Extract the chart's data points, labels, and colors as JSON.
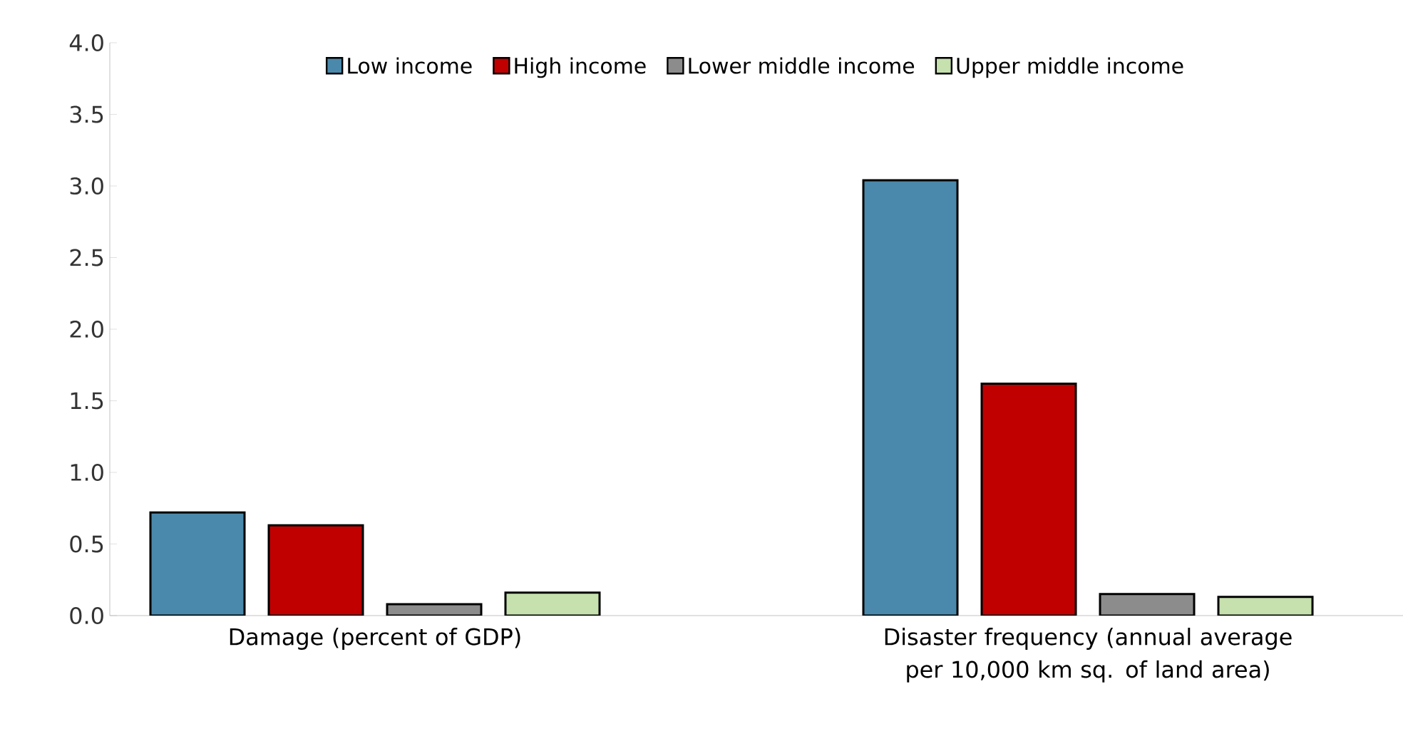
{
  "chart_data": {
    "type": "bar",
    "categories": [
      "Damage (percent of GDP)",
      "Disaster frequency (annual average per 10,000 km sq. of land area)"
    ],
    "series": [
      {
        "name": "Low income",
        "color": "#4a89ab",
        "values": [
          0.72,
          3.04
        ]
      },
      {
        "name": "High income",
        "color": "#c00000",
        "values": [
          0.63,
          1.62
        ]
      },
      {
        "name": "Lower middle income",
        "color": "#8c8c8c",
        "values": [
          0.08,
          0.15
        ]
      },
      {
        "name": "Upper middle income",
        "color": "#c6e0ae",
        "values": [
          0.16,
          0.13
        ]
      }
    ],
    "ylim": [
      0,
      4.0
    ],
    "yticks": [
      {
        "value": 0,
        "label": "0.0"
      },
      {
        "value": 0.5,
        "label": "0.5"
      },
      {
        "value": 1,
        "label": "1.0"
      },
      {
        "value": 1.5,
        "label": "1.5"
      },
      {
        "value": 2,
        "label": "2.0"
      },
      {
        "value": 2.5,
        "label": "2.5"
      },
      {
        "value": 3,
        "label": "3.0"
      },
      {
        "value": 3.5,
        "label": "3.5"
      },
      {
        "value": 4,
        "label": "4.0"
      }
    ],
    "grid": false,
    "legend": "top"
  }
}
